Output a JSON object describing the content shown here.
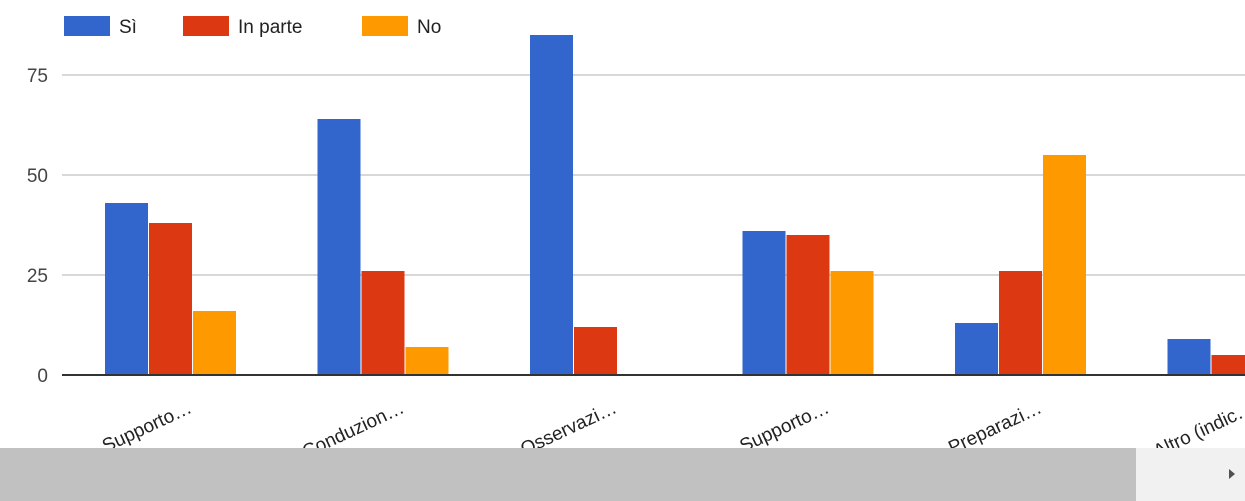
{
  "chart_data": {
    "type": "bar",
    "categories": [
      "Supporto…",
      "Conduzion…",
      "Osservazi…",
      "Supporto…",
      "Preparazi…",
      "Altro (indic…"
    ],
    "series": [
      {
        "name": "Sì",
        "color": "#3366cc",
        "values": [
          43,
          64,
          85,
          36,
          13,
          9
        ]
      },
      {
        "name": "In parte",
        "color": "#dc3912",
        "values": [
          38,
          26,
          12,
          35,
          26,
          5
        ]
      },
      {
        "name": "No",
        "color": "#ff9900",
        "values": [
          16,
          7,
          0,
          26,
          55,
          0
        ]
      }
    ],
    "yticks": [
      "0",
      "25",
      "50",
      "75"
    ],
    "ylim": [
      0,
      92
    ],
    "grid": true,
    "legend_position": "top-left"
  },
  "scrollbar": {
    "arrow_icon": "triangle-right-icon"
  }
}
